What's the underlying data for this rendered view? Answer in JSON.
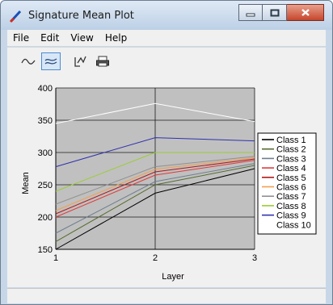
{
  "window": {
    "title": "Signature Mean Plot"
  },
  "menu": [
    {
      "name": "menu-file",
      "label": "File"
    },
    {
      "name": "menu-edit",
      "label": "Edit"
    },
    {
      "name": "menu-view",
      "label": "View"
    },
    {
      "name": "menu-help",
      "label": "Help"
    }
  ],
  "toolbar": {
    "buttons": [
      {
        "name": "line-plot-icon",
        "active": false
      },
      {
        "name": "graph-style-icon",
        "active": true
      },
      {
        "name": "normalize-icon",
        "active": false
      },
      {
        "name": "print-icon",
        "active": false
      }
    ]
  },
  "chart_data": {
    "type": "line",
    "title": "",
    "xlabel": "Layer",
    "ylabel": "Mean",
    "x": [
      1,
      2,
      3
    ],
    "xticks": [
      "1",
      "2",
      "3"
    ],
    "ylim": [
      150,
      400
    ],
    "yticks": [
      "150",
      "200",
      "250",
      "300",
      "350",
      "400"
    ],
    "grid": true,
    "plot_background": "#c0c0c0",
    "legend_position": "right",
    "series": [
      {
        "name": "Class 1",
        "color": "#000000",
        "values": [
          150,
          237,
          275
        ]
      },
      {
        "name": "Class 2",
        "color": "#556b2f",
        "values": [
          162,
          250,
          280
        ]
      },
      {
        "name": "Class 3",
        "color": "#6e7e8e",
        "values": [
          175,
          255,
          283
        ]
      },
      {
        "name": "Class 4",
        "color": "#e03a3a",
        "values": [
          200,
          265,
          288
        ]
      },
      {
        "name": "Class 5",
        "color": "#b01818",
        "values": [
          205,
          270,
          290
        ]
      },
      {
        "name": "Class 6",
        "color": "#f0a050",
        "values": [
          210,
          274,
          292
        ]
      },
      {
        "name": "Class 7",
        "color": "#909090",
        "values": [
          220,
          278,
          294
        ]
      },
      {
        "name": "Class 8",
        "color": "#9acd32",
        "values": [
          240,
          300,
          300
        ]
      },
      {
        "name": "Class 9",
        "color": "#3030b0",
        "values": [
          278,
          323,
          318
        ]
      },
      {
        "name": "Class 10",
        "color": "#ffffff",
        "values": [
          345,
          376,
          348
        ]
      }
    ]
  }
}
